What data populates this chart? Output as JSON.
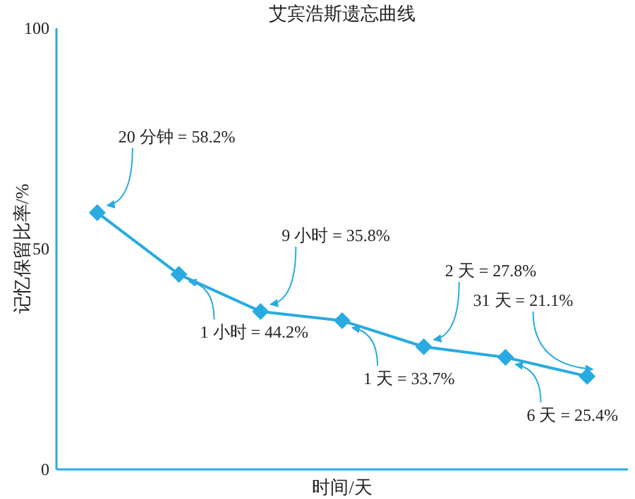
{
  "chart_data": {
    "type": "line",
    "title": "艾宾浩斯遗忘曲线",
    "xlabel": "时间/天",
    "ylabel": "记忆保留比率/%",
    "categories": [
      null,
      null,
      null,
      null,
      null,
      null,
      null
    ],
    "series": [
      {
        "color": "#29abe2",
        "values": [
          58.2,
          44.2,
          35.8,
          33.7,
          27.8,
          25.4,
          21.1
        ],
        "value_labels": [
          "20 分钟 = 58.2%",
          "1 小时 = 44.2%",
          "9 小时 = 35.8%",
          "1 天 = 33.7%",
          "2 天 = 27.8%",
          "6 天 = 25.4%",
          "31 天 = 21.1%"
        ]
      }
    ],
    "ylim": [
      0,
      100
    ],
    "yticks": [
      0,
      50,
      100
    ],
    "tick_labels": "y",
    "marker": "diamond",
    "line_style": "solid"
  }
}
